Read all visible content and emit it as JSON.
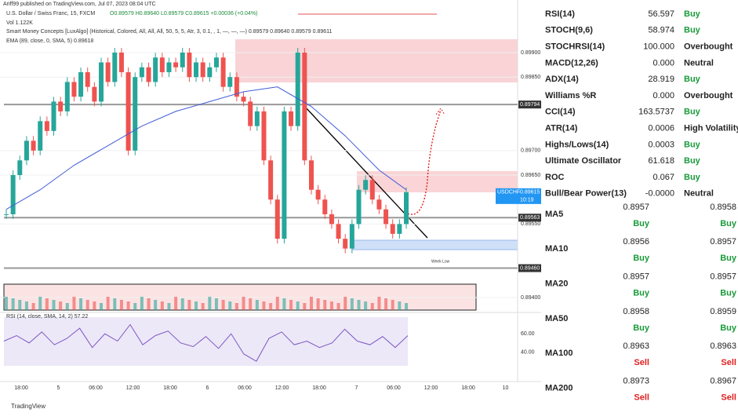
{
  "header": {
    "publisher": "Ariff99 published on TradingView.com, Jul 07, 2023 08:04 UTC",
    "symbol": "U.S. Dollar / Swiss Franc, 15, FXCM",
    "ohlc": "O0.89579 H0.89640 L0.89579 C0.89615 +0.00036 (+0.04%)",
    "volume": "Vol 1.122K",
    "smc": "Smart Money Concepts [LuxAlgo] (Historical, Colored, All, All, All, 50, 5, 5, Atr, 3, 0.1, , 1, —, —, —) 0.89579 0.89640 0.89579 0.89611",
    "ema": "EMA (89, close, 0, SMA, 5) 0.89618"
  },
  "chart": {
    "ylim": [
      0.8937,
      0.8996
    ],
    "yticks": [
      {
        "value": 0.899,
        "label": "0.89900"
      },
      {
        "value": 0.8985,
        "label": "0.89850"
      },
      {
        "value": 0.897,
        "label": "0.89700"
      },
      {
        "value": 0.8965,
        "label": "0.89650"
      },
      {
        "value": 0.8955,
        "label": "0.89550"
      },
      {
        "value": 0.894,
        "label": "0.89400"
      }
    ],
    "levels": [
      {
        "value": 0.89794,
        "label": "0.89794"
      },
      {
        "value": 0.89563,
        "label": "0.89563"
      },
      {
        "value": 0.8946,
        "label": "0.89460"
      }
    ],
    "current": {
      "symbol": "USDCHF",
      "value": 0.89615,
      "label": "0.89615",
      "countdown": "10:19"
    },
    "closes": [
      0.8957,
      0.8965,
      0.8968,
      0.8972,
      0.897,
      0.8976,
      0.8974,
      0.898,
      0.8978,
      0.8984,
      0.8981,
      0.8986,
      0.8983,
      0.898,
      0.8988,
      0.8984,
      0.899,
      0.8986,
      0.897,
      0.8985,
      0.8987,
      0.8984,
      0.8989,
      0.8986,
      0.8988,
      0.8987,
      0.899,
      0.8985,
      0.8988,
      0.8985,
      0.8987,
      0.8989,
      0.8983,
      0.8985,
      0.8981,
      0.898,
      0.8975,
      0.8978,
      0.8968,
      0.896,
      0.8952,
      0.8978,
      0.8975,
      0.899,
      0.8968,
      0.8962,
      0.896,
      0.8957,
      0.8955,
      0.8952,
      0.895,
      0.8955,
      0.8962,
      0.8964,
      0.896,
      0.8958,
      0.8955,
      0.8953,
      0.8955,
      0.89615
    ],
    "ema": [
      0.8958,
      0.8962,
      0.8967,
      0.8971,
      0.8975,
      0.8978,
      0.898,
      0.8982,
      0.8983,
      0.8979,
      0.8973,
      0.8966,
      0.8962
    ],
    "week_low": "Week Low",
    "rsi_label": "RSI (14, close, SMA, 14, 2) 57.22",
    "rsi_ylim": [
      25,
      85
    ],
    "rsi_yticks": [
      {
        "value": 60,
        "label": "60.00"
      },
      {
        "value": 40,
        "label": "40.00"
      }
    ],
    "rsi": [
      52,
      58,
      50,
      62,
      48,
      55,
      66,
      45,
      60,
      52,
      70,
      48,
      58,
      63,
      50,
      46,
      57,
      44,
      60,
      38,
      30,
      55,
      62,
      48,
      52,
      45,
      50,
      65,
      52,
      48,
      57,
      45,
      58
    ],
    "time_labels": [
      "18:00",
      "5",
      "06:00",
      "12:00",
      "18:00",
      "6",
      "06:00",
      "12:00",
      "18:00",
      "7",
      "06:00",
      "12:00",
      "18:00",
      "10"
    ]
  },
  "indicators": [
    [
      "RSI(14)",
      "56.597",
      "Buy"
    ],
    [
      "STOCH(9,6)",
      "58.974",
      "Buy"
    ],
    [
      "STOCHRSI(14)",
      "100.000",
      "Overbought"
    ],
    [
      "MACD(12,26)",
      "0.000",
      "Neutral"
    ],
    [
      "ADX(14)",
      "28.919",
      "Buy"
    ],
    [
      "Williams %R",
      "0.000",
      "Overbought"
    ],
    [
      "CCI(14)",
      "163.5737",
      "Buy"
    ],
    [
      "ATR(14)",
      "0.0006",
      "High Volatility"
    ],
    [
      "Highs/Lows(14)",
      "0.0003",
      "Buy"
    ],
    [
      "Ultimate Oscillator",
      "61.618",
      "Buy"
    ],
    [
      "ROC",
      "0.067",
      "Buy"
    ],
    [
      "Bull/Bear Power(13)",
      "-0.0000",
      "Neutral"
    ]
  ],
  "moving_averages": [
    [
      "MA5",
      "0.8957",
      "0.8958",
      "Buy",
      "Buy"
    ],
    [
      "MA10",
      "0.8956",
      "0.8957",
      "Buy",
      "Buy"
    ],
    [
      "MA20",
      "0.8957",
      "0.8957",
      "Buy",
      "Buy"
    ],
    [
      "MA50",
      "0.8958",
      "0.8959",
      "Buy",
      "Buy"
    ],
    [
      "MA100",
      "0.8963",
      "0.8963",
      "Sell",
      "Sell"
    ],
    [
      "MA200",
      "0.8973",
      "0.8967",
      "Sell",
      "Sell"
    ]
  ],
  "footer": "TradingView"
}
